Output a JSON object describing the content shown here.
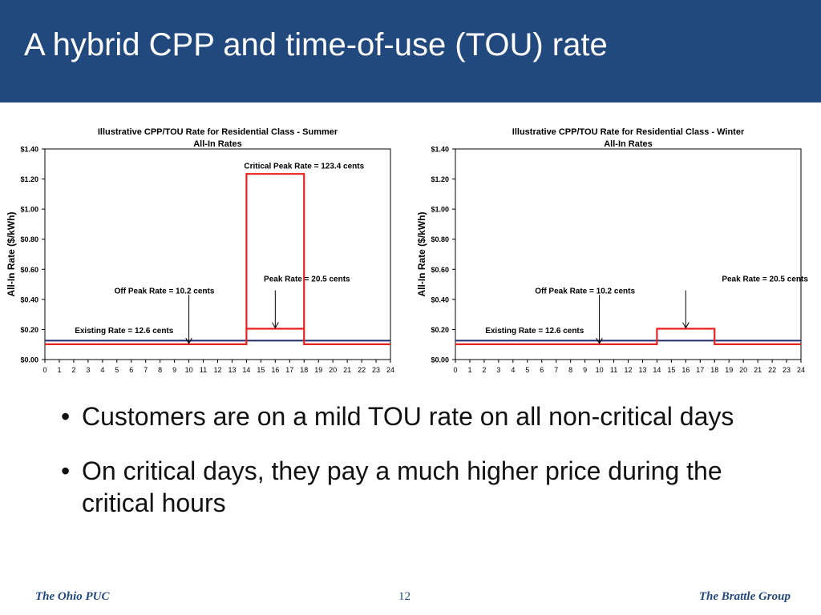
{
  "slide": {
    "title": "A hybrid CPP and time-of-use (TOU) rate",
    "bullets": [
      "Customers are on a mild TOU rate on all non-critical days",
      "On critical days, they pay a much higher price during the critical hours"
    ],
    "footer": {
      "left": "The Ohio PUC",
      "page": "12",
      "right": "The Brattle Group"
    }
  },
  "colors": {
    "header_bg": "#21497e",
    "tou_line": "#e8201e",
    "existing_line": "#1f2a6b"
  },
  "chart_data": [
    {
      "type": "line",
      "title": "Illustrative CPP/TOU Rate for Residential Class - Summer",
      "subtitle": "All-In Rates",
      "ylabel": "All-In Rate ($/kWh)",
      "xlabel": "",
      "xlim": [
        0,
        24
      ],
      "ylim": [
        0,
        1.4
      ],
      "x_ticks": [
        "0",
        "1",
        "2",
        "3",
        "4",
        "5",
        "6",
        "7",
        "8",
        "9",
        "10",
        "11",
        "12",
        "13",
        "14",
        "15",
        "16",
        "17",
        "18",
        "19",
        "20",
        "21",
        "22",
        "23",
        "24"
      ],
      "y_ticks": [
        "$0.00",
        "$0.20",
        "$0.40",
        "$0.60",
        "$0.80",
        "$1.00",
        "$1.20",
        "$1.40"
      ],
      "grid": false,
      "series": [
        {
          "key": "existing",
          "color": "#1f2a6b",
          "x": [
            0,
            24
          ],
          "y": [
            0.126,
            0.126
          ]
        },
        {
          "key": "tou",
          "color": "#e8201e",
          "x": [
            0,
            14,
            14,
            18,
            18,
            24
          ],
          "y": [
            0.102,
            0.102,
            0.205,
            0.205,
            0.102,
            0.102
          ]
        },
        {
          "key": "cpp",
          "color": "#e8201e",
          "x": [
            14,
            14,
            18,
            18
          ],
          "y": [
            0.205,
            1.234,
            1.234,
            0.205
          ]
        }
      ],
      "annotations": [
        {
          "text": "Critical Peak Rate = 123.4 cents",
          "x": 18,
          "y": 1.27,
          "anchor": "middle"
        },
        {
          "text": "Peak Rate = 20.5 cents",
          "x": 18.2,
          "y": 0.52,
          "anchor": "middle"
        },
        {
          "text": "Off Peak Rate = 10.2 cents",
          "x": 8.3,
          "y": 0.44,
          "anchor": "middle"
        },
        {
          "text": "Existing Rate = 12.6 cents",
          "x": 5.5,
          "y": 0.175,
          "anchor": "middle"
        }
      ],
      "arrows": [
        {
          "x": 10,
          "y_from": 0.43,
          "y_to": 0.102
        },
        {
          "x": 16,
          "y_from": 0.46,
          "y_to": 0.205
        }
      ]
    },
    {
      "type": "line",
      "title": "Illustrative CPP/TOU Rate for Residential Class - Winter",
      "subtitle": "All-In Rates",
      "ylabel": "All-In Rate ($/kWh)",
      "xlabel": "",
      "xlim": [
        0,
        24
      ],
      "ylim": [
        0,
        1.4
      ],
      "x_ticks": [
        "0",
        "1",
        "2",
        "3",
        "4",
        "5",
        "6",
        "7",
        "8",
        "9",
        "10",
        "11",
        "12",
        "13",
        "14",
        "15",
        "16",
        "17",
        "18",
        "19",
        "20",
        "21",
        "22",
        "23",
        "24"
      ],
      "y_ticks": [
        "$0.00",
        "$0.20",
        "$0.40",
        "$0.60",
        "$0.80",
        "$1.00",
        "$1.20",
        "$1.40"
      ],
      "grid": false,
      "series": [
        {
          "key": "existing",
          "color": "#1f2a6b",
          "x": [
            0,
            24
          ],
          "y": [
            0.126,
            0.126
          ]
        },
        {
          "key": "tou",
          "color": "#e8201e",
          "x": [
            0,
            14,
            14,
            18,
            18,
            24
          ],
          "y": [
            0.102,
            0.102,
            0.205,
            0.205,
            0.102,
            0.102
          ]
        }
      ],
      "annotations": [
        {
          "text": "Peak Rate = 20.5 cents",
          "x": 21.5,
          "y": 0.52,
          "anchor": "middle"
        },
        {
          "text": "Off Peak Rate = 10.2 cents",
          "x": 9,
          "y": 0.44,
          "anchor": "middle"
        },
        {
          "text": "Existing Rate = 12.6 cents",
          "x": 5.5,
          "y": 0.175,
          "anchor": "middle"
        }
      ],
      "arrows": [
        {
          "x": 10,
          "y_from": 0.43,
          "y_to": 0.102
        },
        {
          "x": 16,
          "y_from": 0.46,
          "y_to": 0.205
        }
      ]
    }
  ]
}
